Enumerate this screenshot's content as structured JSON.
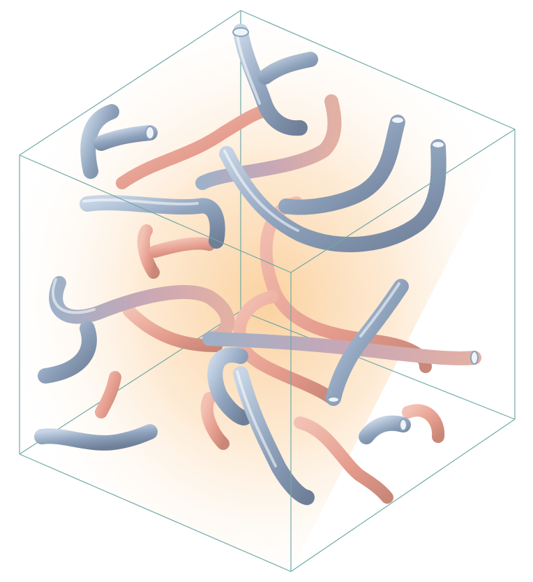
{
  "scene": {
    "subject": "cube",
    "colors": {
      "background": "#ffffff",
      "glow_center": "#fbd7a8",
      "cube_edge": "#6fa9a8",
      "tube_blue": "#9fb2c9",
      "tube_pink": "#e7a59a",
      "tube_mauve": "#b9a3b6"
    }
  }
}
